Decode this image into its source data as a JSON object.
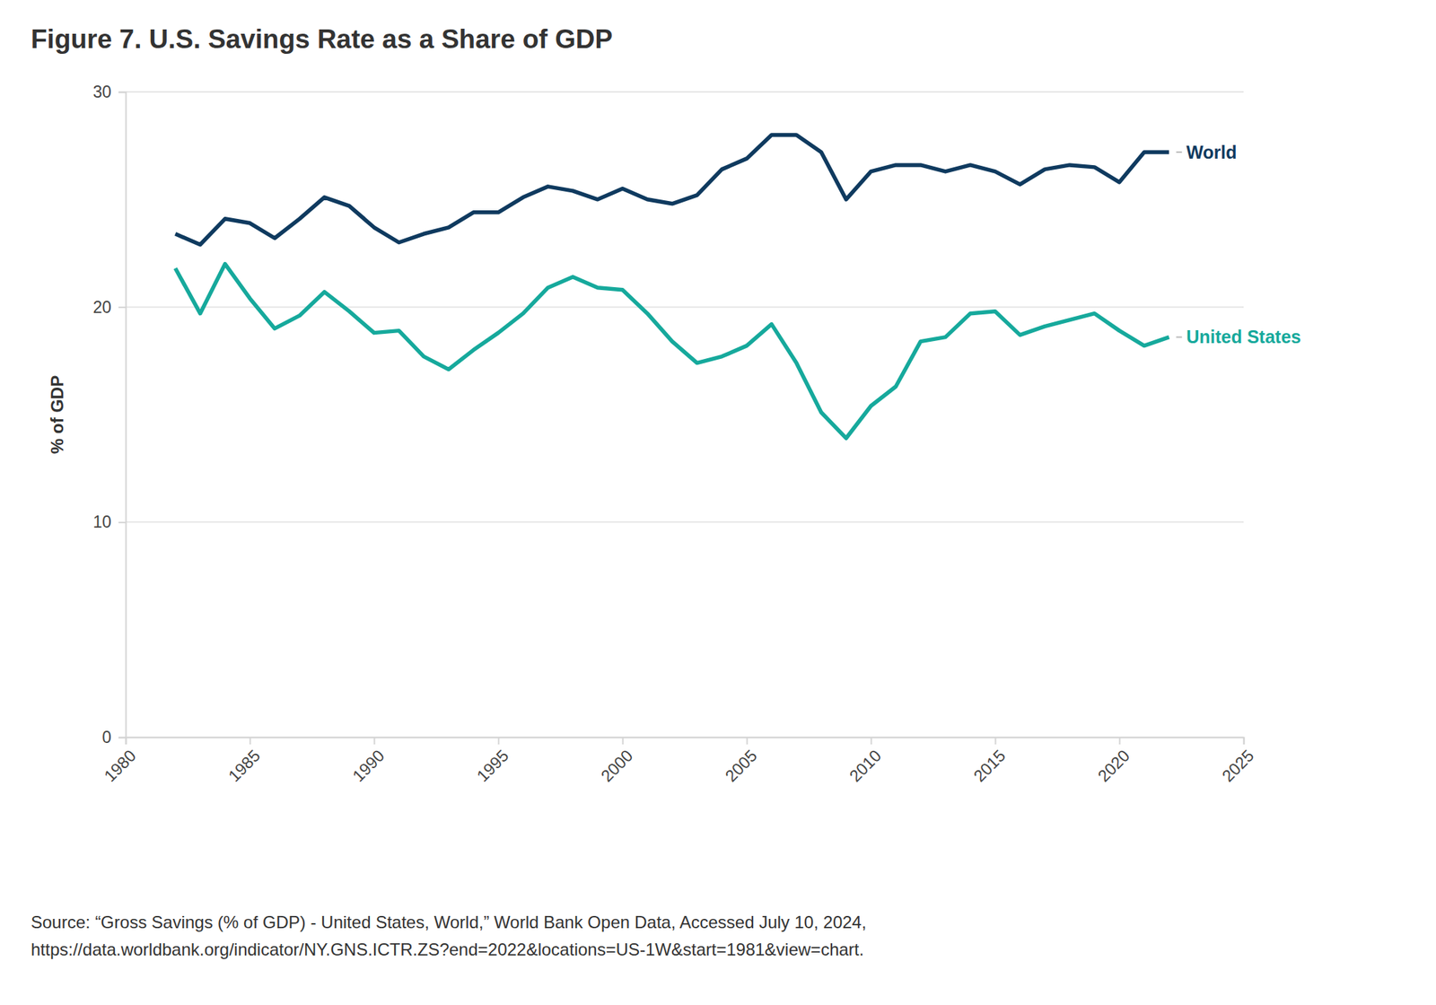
{
  "chart_data": {
    "type": "line",
    "title": "Figure 7. U.S. Savings Rate as a Share of GDP",
    "y_label": "% of GDP",
    "source": [
      "Source: “Gross Savings (% of GDP) - United States, World,” World Bank Open Data, Accessed July 10, 2024,",
      "https://data.worldbank.org/indicator/NY.GNS.ICTR.ZS?end=2022&locations=US-1W&start=1981&view=chart."
    ],
    "x": [
      1982,
      1983,
      1984,
      1985,
      1986,
      1987,
      1988,
      1989,
      1990,
      1991,
      1992,
      1993,
      1994,
      1995,
      1996,
      1997,
      1998,
      1999,
      2000,
      2001,
      2002,
      2003,
      2004,
      2005,
      2006,
      2007,
      2008,
      2009,
      2010,
      2011,
      2012,
      2013,
      2014,
      2015,
      2016,
      2017,
      2018,
      2019,
      2020,
      2021,
      2022
    ],
    "series": [
      {
        "name": "World",
        "color": "#0f3a5f",
        "values": [
          23.4,
          22.9,
          24.1,
          23.9,
          23.2,
          24.1,
          25.1,
          24.7,
          23.7,
          23.0,
          23.4,
          23.7,
          24.4,
          24.4,
          25.1,
          25.6,
          25.4,
          25.0,
          25.5,
          25.0,
          24.8,
          25.2,
          26.4,
          26.9,
          28.0,
          28.0,
          27.2,
          25.0,
          26.3,
          26.6,
          26.6,
          26.3,
          26.6,
          26.3,
          25.7,
          26.4,
          26.6,
          26.5,
          25.8,
          27.2,
          27.2
        ]
      },
      {
        "name": "United States",
        "color": "#16a99c",
        "values": [
          21.8,
          19.7,
          22.0,
          20.4,
          19.0,
          19.6,
          20.7,
          19.8,
          18.8,
          18.9,
          17.7,
          17.1,
          18.0,
          18.8,
          19.7,
          20.9,
          21.4,
          20.9,
          20.8,
          19.7,
          18.4,
          17.4,
          17.7,
          18.2,
          19.2,
          17.4,
          15.1,
          13.9,
          15.4,
          16.3,
          18.4,
          18.6,
          19.7,
          19.8,
          18.7,
          19.1,
          19.4,
          19.7,
          18.9,
          18.2,
          18.6
        ]
      }
    ],
    "xlim": [
      1980,
      2025
    ],
    "xticks": [
      1980,
      1985,
      1990,
      1995,
      2000,
      2005,
      2010,
      2015,
      2020,
      2025
    ],
    "ylim": [
      0,
      30
    ],
    "yticks": [
      0,
      10,
      20,
      30
    ],
    "grid": "y"
  }
}
